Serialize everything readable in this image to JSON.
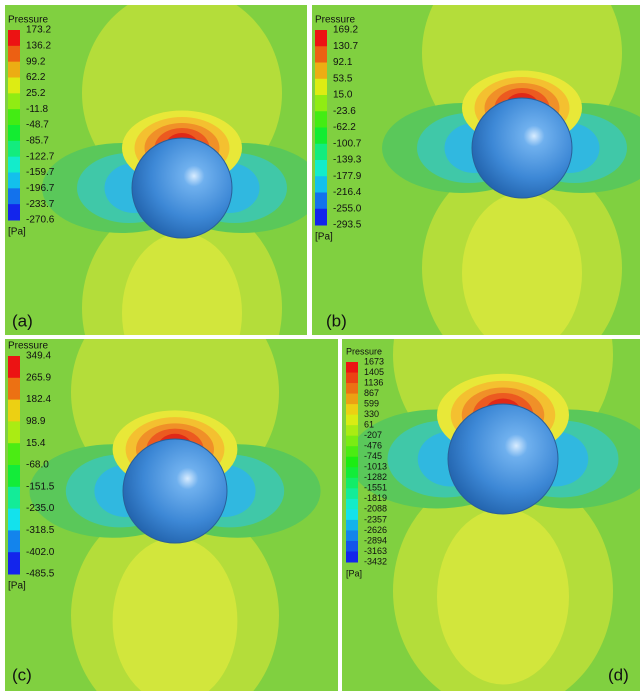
{
  "panels": [
    {
      "label": "(a)",
      "legend": {
        "title": "Pressure",
        "unit": "[Pa]",
        "levels": [
          "173.2",
          "136.2",
          "99.2",
          "62.2",
          "25.2",
          "-11.8",
          "-48.7",
          "-85.7",
          "-122.7",
          "-159.7",
          "-196.7",
          "-233.7",
          "-270.6"
        ]
      }
    },
    {
      "label": "(b)",
      "legend": {
        "title": "Pressure",
        "unit": "[Pa]",
        "levels": [
          "169.2",
          "130.7",
          "92.1",
          "53.5",
          "15.0",
          "-23.6",
          "-62.2",
          "-100.7",
          "-139.3",
          "-177.9",
          "-216.4",
          "-255.0",
          "-293.5"
        ]
      }
    },
    {
      "label": "(c)",
      "legend": {
        "title": "Pressure",
        "unit": "[Pa]",
        "levels": [
          "349.4",
          "265.9",
          "182.4",
          "98.9",
          "15.4",
          "-68.0",
          "-151.5",
          "-235.0",
          "-318.5",
          "-402.0",
          "-485.5"
        ]
      }
    },
    {
      "label": "(d)",
      "legend": {
        "title": "Pressure",
        "unit": "[Pa]",
        "levels": [
          "1673",
          "1405",
          "1136",
          "867",
          "599",
          "330",
          "61",
          "-207",
          "-476",
          "-745",
          "-1013",
          "-1282",
          "-1551",
          "-1819",
          "-2088",
          "-2357",
          "-2626",
          "-2894",
          "-3163",
          "-3432"
        ]
      }
    }
  ]
}
